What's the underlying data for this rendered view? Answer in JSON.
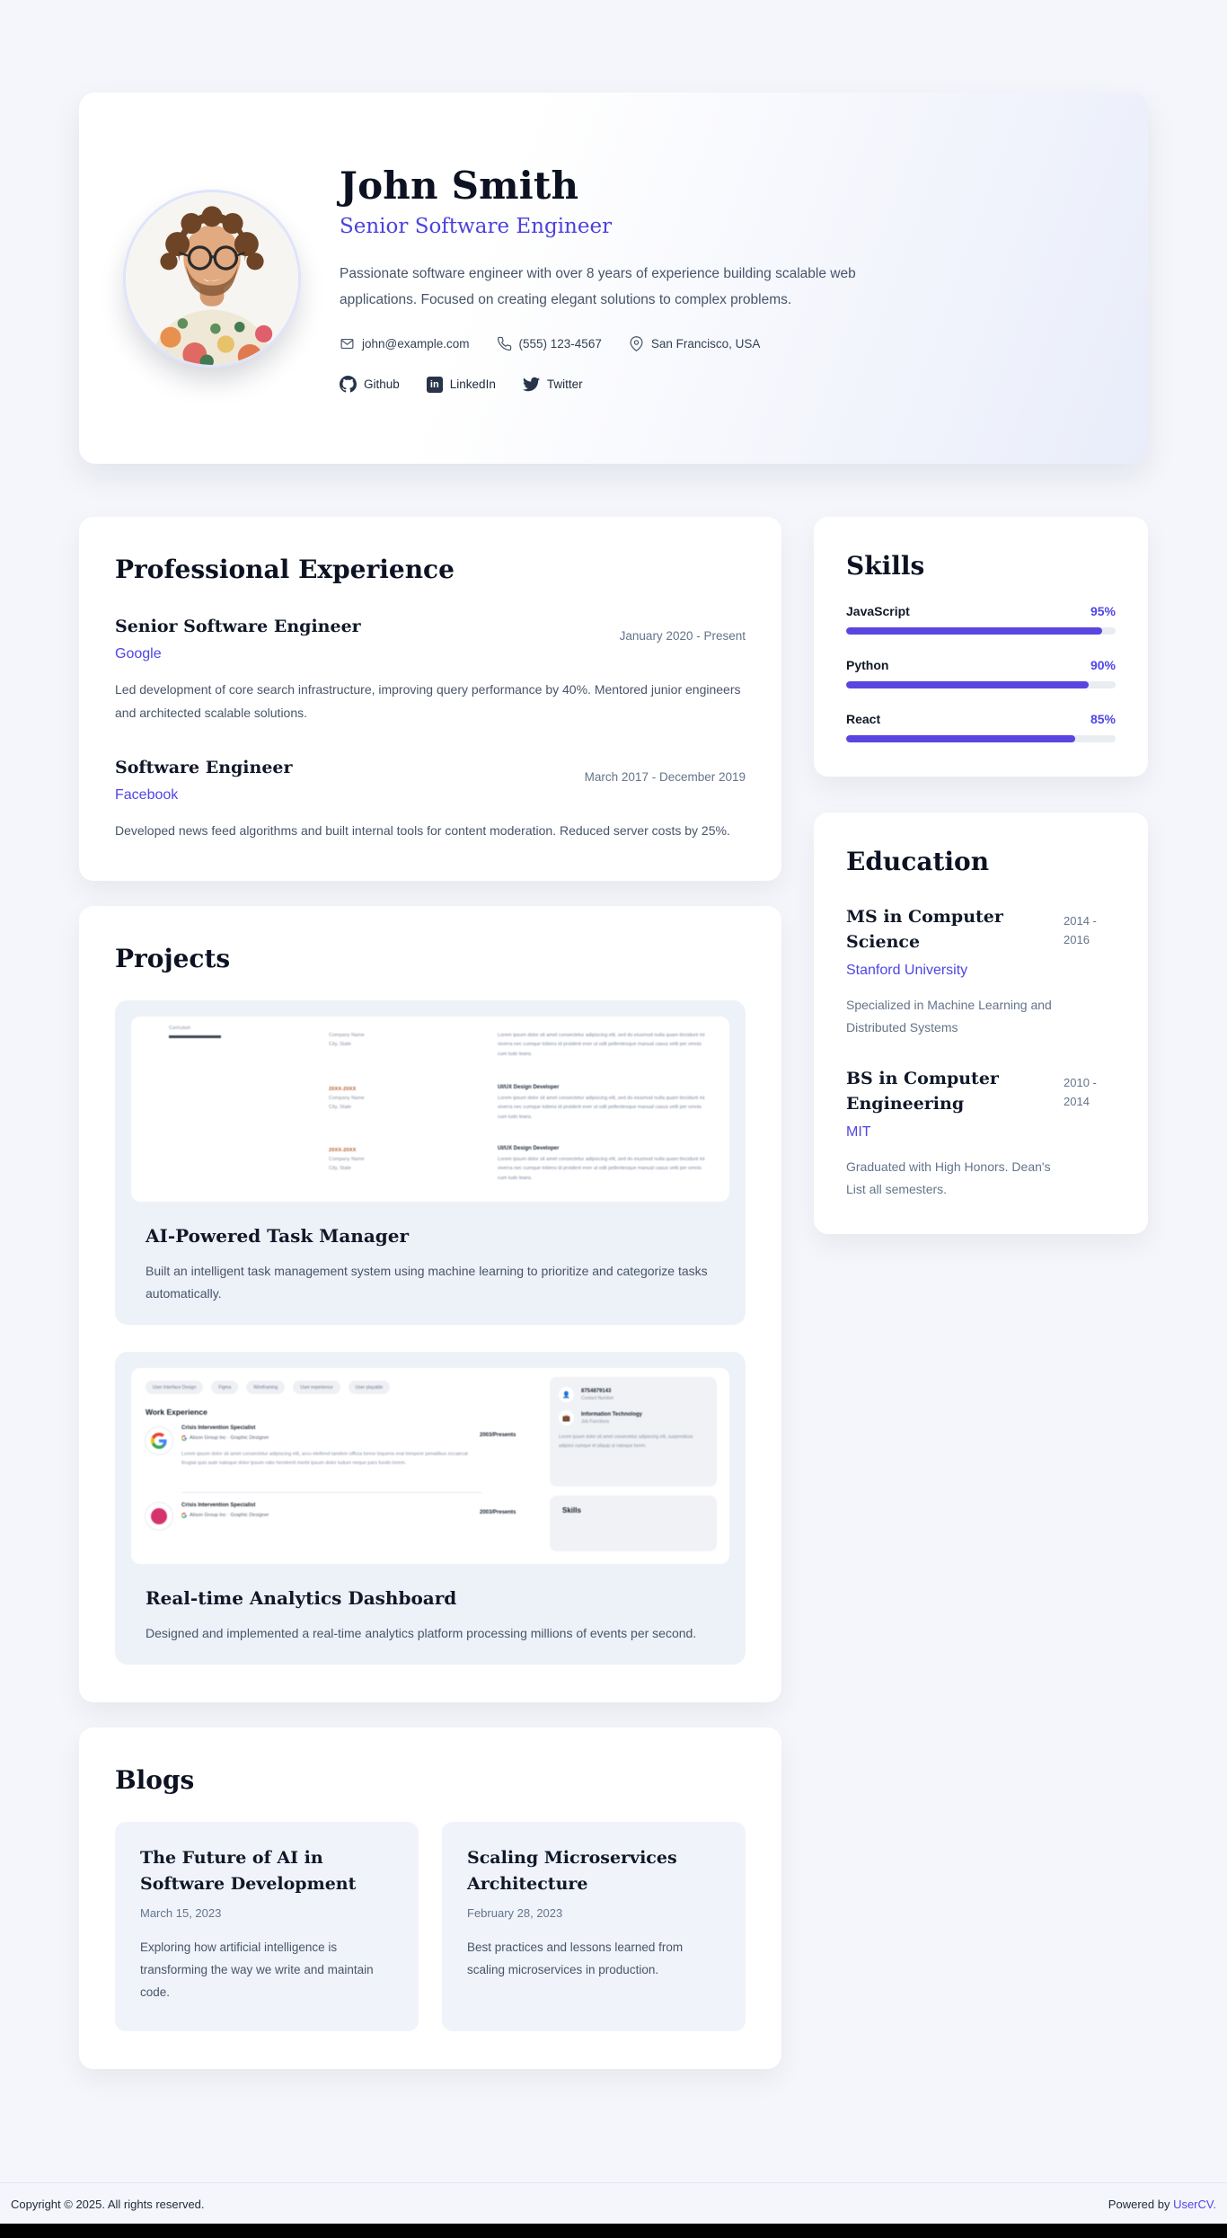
{
  "header": {
    "name": "John Smith",
    "role": "Senior Software Engineer",
    "summary": "Passionate software engineer with over 8 years of experience building scalable web applications. Focused on creating elegant solutions to complex problems.",
    "contact": {
      "email": "john@example.com",
      "phone": "(555) 123-4567",
      "location": "San Francisco, USA"
    },
    "social": {
      "github": "Github",
      "linkedin": "LinkedIn",
      "twitter": "Twitter"
    }
  },
  "experience": {
    "title": "Professional Experience",
    "items": [
      {
        "role": "Senior Software Engineer",
        "company": "Google",
        "period": "January 2020 - Present",
        "description": "Led development of core search infrastructure, improving query performance by 40%. Mentored junior engineers and architected scalable solutions."
      },
      {
        "role": "Software Engineer",
        "company": "Facebook",
        "period": "March 2017 - December 2019",
        "description": "Developed news feed algorithms and built internal tools for content moderation. Reduced server costs by 25%."
      }
    ]
  },
  "skills": {
    "title": "Skills",
    "items": [
      {
        "name": "JavaScript",
        "percent": 95,
        "label": "95%"
      },
      {
        "name": "Python",
        "percent": 90,
        "label": "90%"
      },
      {
        "name": "React",
        "percent": 85,
        "label": "85%"
      }
    ]
  },
  "education": {
    "title": "Education",
    "items": [
      {
        "degree": "MS in Computer Science",
        "school": "Stanford University",
        "period": "2014 - 2016",
        "description": "Specialized in Machine Learning and Distributed Systems"
      },
      {
        "degree": "BS in Computer Engineering",
        "school": "MIT",
        "period": "2010 - 2014",
        "description": "Graduated with High Honors. Dean's List all semesters."
      }
    ]
  },
  "projects": {
    "title": "Projects",
    "items": [
      {
        "title": "AI-Powered Task Manager",
        "description": "Built an intelligent task management system using machine learning to prioritize and categorize tasks automatically.",
        "thumbnail": {
          "brand": "Curriculum",
          "date": "20XX-20XX",
          "company": "Company Name\nCity, State",
          "heading": "UI/UX Design Developer",
          "para": "Lorem ipsum dolor sit amet consectetur adipiscing elit, sed do eiusmod nulla quam tincidunt mi viverra nec cumque totiens id proident ever ut odit pellentesque manual casus velit per omnis cum ludo leans."
        }
      },
      {
        "title": "Real-time Analytics Dashboard",
        "description": "Designed and implemented a real-time analytics platform processing millions of events per second.",
        "thumbnail": {
          "tags": [
            "User Interface Design",
            "Figma",
            "Wireframing",
            "User experience",
            "User playable"
          ],
          "section": "Work Experience",
          "entry_title": "Crisis Intervention Specialist",
          "entry_subtitle": "Alison Group Inc  ·  Graphic Designer",
          "entry_date": "2003/Presents",
          "entry_para": "Lorem ipsum dolor sit amet consectetur adipiscing elit, arcu eleifend tandem officia tonno loquens erat tempore penatibus occaecat feugiat quis aute natoque dolor ipsum ratio hendrerit morbi ipsum dolor ludum neque pars fundo lorem.",
          "sidebar": {
            "contact_value": "8754879143",
            "contact_label": "Contact Number",
            "job_value": "Information Technology",
            "job_label": "Job Functions",
            "para": "Lorem ipsum dolor sit amet consectetur adipiscing elit, suspendisse adipisci cumque et aliquip ut natoque lorem."
          },
          "skills_heading": "Skills"
        }
      }
    ]
  },
  "blogs": {
    "title": "Blogs",
    "items": [
      {
        "title": "The Future of AI in Software Development",
        "date": "March 15, 2023",
        "excerpt": "Exploring how artificial intelligence is transforming the way we write and maintain code."
      },
      {
        "title": "Scaling Microservices Architecture",
        "date": "February 28, 2023",
        "excerpt": "Best practices and lessons learned from scaling microservices in production."
      }
    ]
  },
  "footer": {
    "copyright": "Copyright © 2025. All rights reserved.",
    "powered_prefix": "Powered by ",
    "powered_link": "UserCV."
  },
  "colors": {
    "accent": "#4f46e5",
    "bar": "#5a45e0",
    "page_bg": "#f4f6fb"
  }
}
